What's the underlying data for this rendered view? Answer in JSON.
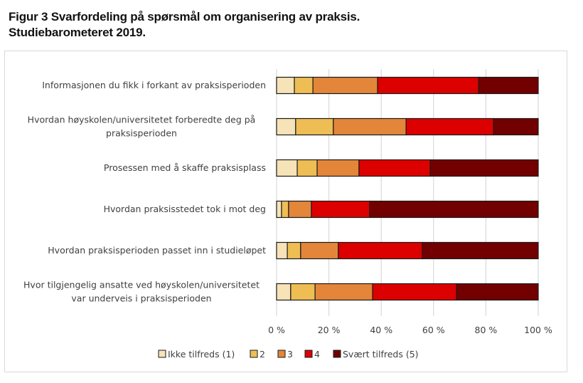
{
  "chart_data": {
    "type": "bar",
    "orientation": "horizontal",
    "stacked": "percent",
    "title": "Figur 3 Svarfordeling på spørsmål om organisering av praksis. Studiebarometeret 2019.",
    "title_lines": [
      "Figur 3 Svarfordeling på spørsmål om organisering av praksis.",
      "Studiebarometeret 2019."
    ],
    "xlabel": "",
    "ylabel": "",
    "xlim": [
      0,
      100
    ],
    "x_ticks": [
      0,
      20,
      40,
      60,
      80,
      100
    ],
    "x_tick_labels": [
      "0 %",
      "20 %",
      "40 %",
      "60 %",
      "80 %",
      "100 %"
    ],
    "grid": true,
    "legend_position": "bottom",
    "categories": [
      [
        "Informasjonen du fikk i forkant av praksisperioden"
      ],
      [
        "Hvordan høyskolen/universitetet forberedte deg på",
        "praksisperioden"
      ],
      [
        "Prosessen med å skaffe praksisplass"
      ],
      [
        "Hvordan praksisstedet tok i mot deg"
      ],
      [
        "Hvordan praksisperioden passet inn i studieløpet"
      ],
      [
        "Hvor tilgjengelig ansatte ved høyskolen/universitetet",
        "var underveis i praksisperioden"
      ]
    ],
    "series": [
      {
        "name": "Ikke tilfreds (1)",
        "color": "#f7e3b8",
        "values": [
          6.8,
          7.3,
          7.9,
          1.9,
          4.1,
          5.4
        ]
      },
      {
        "name": "2",
        "color": "#eebe55",
        "values": [
          7.1,
          14.4,
          7.6,
          2.7,
          5.1,
          9.3
        ]
      },
      {
        "name": "3",
        "color": "#e3863a",
        "values": [
          24.7,
          27.8,
          16.0,
          8.7,
          14.4,
          22.0
        ]
      },
      {
        "name": "4",
        "color": "#dc0000",
        "values": [
          38.6,
          33.4,
          27.2,
          22.3,
          32.1,
          32.1
        ]
      },
      {
        "name": "Svært tilfreds (5)",
        "color": "#720000",
        "values": [
          22.8,
          17.1,
          41.3,
          64.4,
          44.3,
          31.2
        ]
      }
    ]
  }
}
